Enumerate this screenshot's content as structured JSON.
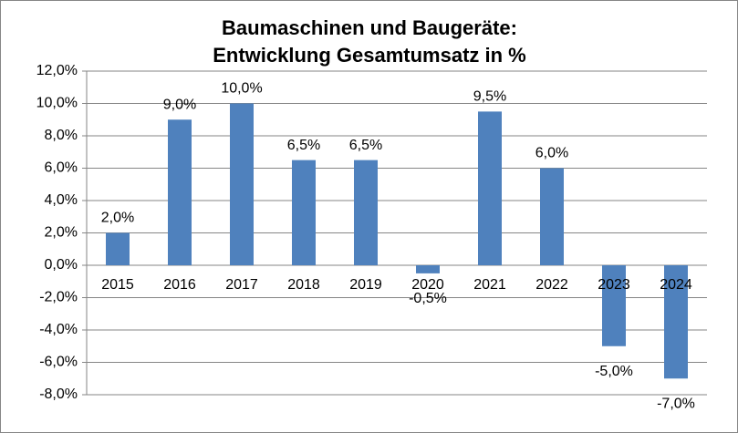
{
  "chart_data": {
    "type": "bar",
    "title": [
      "Baumaschinen und Baugeräte:",
      "Entwicklung Gesamtumsatz in %"
    ],
    "categories": [
      "2015",
      "2016",
      "2017",
      "2018",
      "2019",
      "2020",
      "2021",
      "2022",
      "2023",
      "2024"
    ],
    "values": [
      2,
      9,
      10,
      6.5,
      6.5,
      -0.5,
      9.5,
      6,
      -5,
      -7
    ],
    "value_labels": [
      "2,0%",
      "9,0%",
      "10,0%",
      "6,5%",
      "6,5%",
      "-0,5%",
      "9,5%",
      "6,0%",
      "-5,0%",
      "-7,0%"
    ],
    "color": "#4f81bd",
    "ylim": [
      -8,
      12
    ],
    "yticks": [
      {
        "value": -8,
        "label": "-8,0%"
      },
      {
        "value": -6,
        "label": "-6,0%"
      },
      {
        "value": -4,
        "label": "-4,0%"
      },
      {
        "value": -2,
        "label": "-2,0%"
      },
      {
        "value": 0,
        "label": "0,0%"
      },
      {
        "value": 2,
        "label": "2,0%"
      },
      {
        "value": 4,
        "label": "4,0%"
      },
      {
        "value": 6,
        "label": "6,0%"
      },
      {
        "value": 8,
        "label": "8,0%"
      },
      {
        "value": 10,
        "label": "10,0%"
      },
      {
        "value": 12,
        "label": "12,0%"
      }
    ],
    "grid": true
  }
}
